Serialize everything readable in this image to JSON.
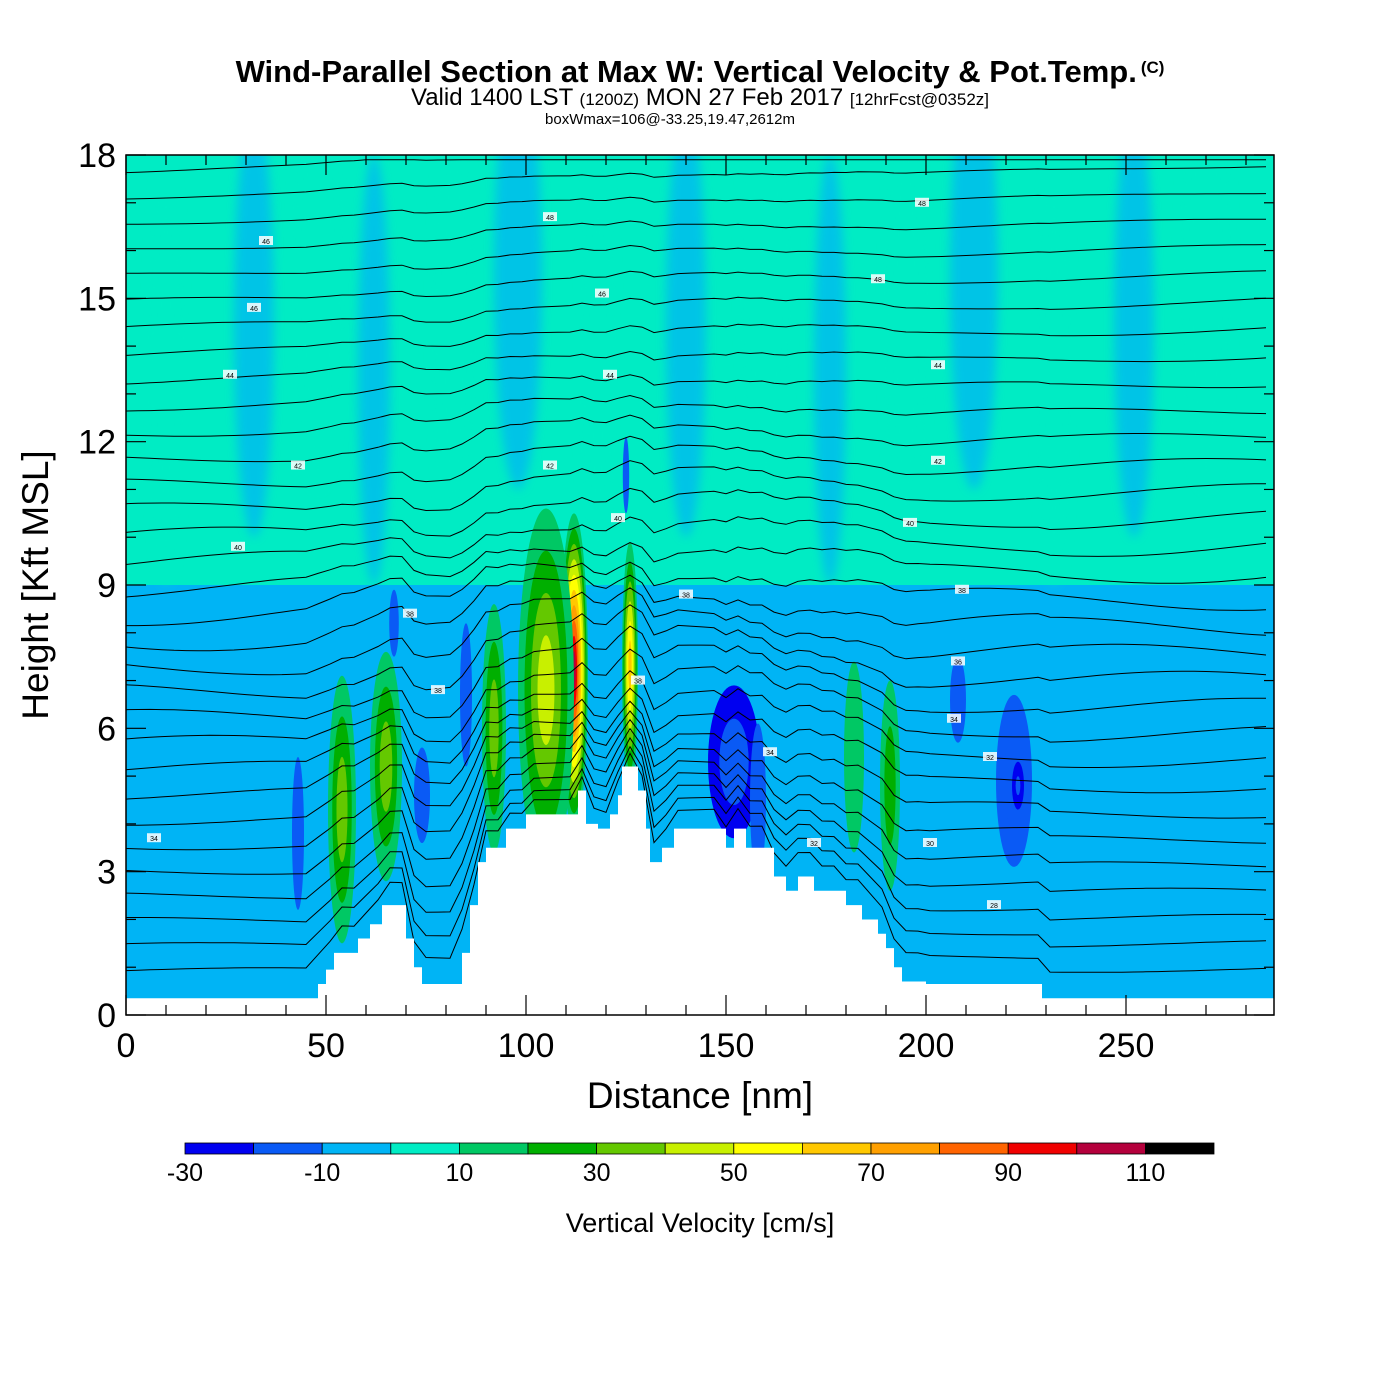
{
  "header": {
    "title": "Wind-Parallel Section at Max W: Vertical Velocity & Pot.Temp.",
    "copyright": "(C)",
    "valid_prefix": "Valid 1400 LST",
    "valid_utc": "(1200Z)",
    "valid_date": "MON 27 Feb 2017",
    "forecast": "[12hrFcst@0352z]",
    "subtitle": "boxWmax=106@-33.25,19.47,2612m"
  },
  "colors": {
    "frame": "#000000",
    "contour": "#000000",
    "terrain": "#ffffff",
    "palette": [
      "#0000f0",
      "#0a5af5",
      "#00b4f5",
      "#00ecc4",
      "#00c864",
      "#00af00",
      "#64c800",
      "#c8f000",
      "#ffff00",
      "#ffc800",
      "#ffa000",
      "#ff6400",
      "#f00000",
      "#b4003c"
    ]
  },
  "chart_data": {
    "type": "heatmap",
    "title": "Wind-Parallel Section at Max W: Vertical Velocity & Pot.Temp.",
    "xlabel": "Distance [nm]",
    "ylabel": "Height [Kft MSL]",
    "xlim": [
      0,
      287
    ],
    "ylim": [
      0,
      18
    ],
    "xticks": [
      0,
      50,
      100,
      150,
      200,
      250
    ],
    "yticks": [
      0,
      3,
      6,
      9,
      12,
      15,
      18
    ],
    "colorbar": {
      "title": "Vertical Velocity [cm/s]",
      "levels": [
        -30,
        -20,
        -10,
        0,
        10,
        20,
        30,
        40,
        50,
        60,
        70,
        80,
        90,
        100,
        110,
        120
      ],
      "labels": [
        "-30",
        "-10",
        "10",
        "30",
        "50",
        "70",
        "90",
        "110"
      ],
      "label_values": [
        -30,
        -10,
        10,
        30,
        50,
        70,
        90,
        110
      ]
    },
    "max_w": {
      "value_cm_s": 106,
      "lat": -33.25,
      "lon": 19.47,
      "height_m": 2612,
      "x_nm": 112
    },
    "terrain_profile": {
      "x_nm": [
        0,
        45,
        48,
        50,
        52,
        55,
        58,
        61,
        64,
        67,
        70,
        72,
        74,
        82,
        84,
        86,
        88,
        90,
        92,
        95,
        98,
        100,
        103,
        108,
        113,
        115,
        118,
        121,
        123,
        124,
        126,
        128,
        130,
        131,
        133,
        134,
        137,
        140,
        145,
        150,
        152,
        155,
        160,
        162,
        165,
        168,
        172,
        176,
        180,
        184,
        188,
        190,
        192,
        194,
        196,
        198,
        200,
        205,
        215,
        228,
        229,
        231,
        287
      ],
      "height_kft": [
        0.35,
        0.35,
        0.65,
        0.95,
        1.3,
        1.3,
        1.6,
        1.9,
        2.3,
        2.3,
        1.6,
        1.0,
        0.65,
        0.65,
        1.3,
        2.3,
        3.2,
        3.5,
        3.5,
        3.9,
        3.9,
        4.2,
        4.2,
        4.2,
        4.7,
        4.0,
        3.9,
        4.2,
        4.6,
        5.2,
        5.2,
        4.7,
        3.9,
        3.2,
        3.2,
        3.5,
        3.9,
        3.9,
        3.9,
        3.5,
        3.9,
        3.5,
        3.5,
        2.9,
        2.6,
        2.9,
        2.6,
        2.6,
        2.3,
        2.0,
        1.7,
        1.4,
        1.0,
        0.7,
        0.7,
        0.7,
        0.65,
        0.65,
        0.65,
        0.65,
        0.35,
        0.35,
        0.35
      ]
    },
    "background_field": [
      {
        "x": [
          0,
          287
        ],
        "y": [
          0,
          9
        ],
        "w": -5
      },
      {
        "x": [
          0,
          287
        ],
        "y": [
          9,
          18
        ],
        "w": 4
      }
    ],
    "updraft_cells": [
      {
        "x": 112,
        "y": 7.2,
        "rx": 3.5,
        "ry": 3.3,
        "w": 106
      },
      {
        "x": 126,
        "y": 7.3,
        "rx": 2.0,
        "ry": 2.6,
        "w": 60
      },
      {
        "x": 105,
        "y": 6.8,
        "rx": 7.0,
        "ry": 3.8,
        "w": 40
      },
      {
        "x": 92,
        "y": 6.0,
        "rx": 3.0,
        "ry": 2.6,
        "w": 35
      },
      {
        "x": 65,
        "y": 5.2,
        "rx": 4.0,
        "ry": 2.4,
        "w": 35
      },
      {
        "x": 54,
        "y": 4.3,
        "rx": 3.5,
        "ry": 2.8,
        "w": 30
      },
      {
        "x": 191,
        "y": 4.8,
        "rx": 2.5,
        "ry": 2.2,
        "w": 28
      },
      {
        "x": 182,
        "y": 5.4,
        "rx": 2.5,
        "ry": 2.0,
        "w": 14
      },
      {
        "x": 170,
        "y": 4.4,
        "rx": 4.0,
        "ry": 2.5,
        "w": 8
      }
    ],
    "downdraft_cells": [
      {
        "x": 152,
        "y": 5.3,
        "rx": 6.5,
        "ry": 1.6,
        "w": -22
      },
      {
        "x": 158,
        "y": 4.5,
        "rx": 2.0,
        "ry": 1.6,
        "w": -18
      },
      {
        "x": 222,
        "y": 4.9,
        "rx": 4.5,
        "ry": 1.8,
        "w": -20
      },
      {
        "x": 223,
        "y": 4.8,
        "rx": 1.5,
        "ry": 0.5,
        "w": -30
      },
      {
        "x": 208,
        "y": 6.6,
        "rx": 2.0,
        "ry": 0.9,
        "w": -18
      },
      {
        "x": 67,
        "y": 8.2,
        "rx": 1.2,
        "ry": 0.7,
        "w": -20
      },
      {
        "x": 74,
        "y": 4.6,
        "rx": 2.0,
        "ry": 1.0,
        "w": -15
      },
      {
        "x": 85,
        "y": 6.7,
        "rx": 1.5,
        "ry": 1.5,
        "w": -15
      },
      {
        "x": 43,
        "y": 3.8,
        "rx": 1.5,
        "ry": 1.6,
        "w": -15
      },
      {
        "x": 125,
        "y": 11.3,
        "rx": 0.8,
        "ry": 0.8,
        "w": -15
      }
    ],
    "isentropes": {
      "units": "deg F",
      "theta_levels": [
        26,
        28,
        30,
        32,
        34,
        36,
        38,
        40,
        42,
        44,
        46,
        48
      ],
      "labels": [
        {
          "text": "34",
          "x": 7,
          "y": 3.7
        },
        {
          "text": "38",
          "x": 78,
          "y": 6.8
        },
        {
          "text": "38",
          "x": 71,
          "y": 8.4
        },
        {
          "text": "40",
          "x": 28,
          "y": 9.8
        },
        {
          "text": "42",
          "x": 43,
          "y": 11.5
        },
        {
          "text": "44",
          "x": 26,
          "y": 13.4
        },
        {
          "text": "46",
          "x": 32,
          "y": 14.8
        },
        {
          "text": "46",
          "x": 35,
          "y": 16.2
        },
        {
          "text": "48",
          "x": 106,
          "y": 16.7
        },
        {
          "text": "46",
          "x": 119,
          "y": 15.1
        },
        {
          "text": "44",
          "x": 121,
          "y": 13.4
        },
        {
          "text": "42",
          "x": 106,
          "y": 11.5
        },
        {
          "text": "40",
          "x": 123,
          "y": 10.4
        },
        {
          "text": "38",
          "x": 140,
          "y": 8.8
        },
        {
          "text": "38",
          "x": 128,
          "y": 7.0
        },
        {
          "text": "34",
          "x": 161,
          "y": 5.5
        },
        {
          "text": "32",
          "x": 172,
          "y": 3.6
        },
        {
          "text": "48",
          "x": 199,
          "y": 17.0
        },
        {
          "text": "48",
          "x": 188,
          "y": 15.4
        },
        {
          "text": "44",
          "x": 203,
          "y": 13.6
        },
        {
          "text": "42",
          "x": 203,
          "y": 11.6
        },
        {
          "text": "40",
          "x": 196,
          "y": 10.3
        },
        {
          "text": "38",
          "x": 209,
          "y": 8.9
        },
        {
          "text": "36",
          "x": 208,
          "y": 7.4
        },
        {
          "text": "34",
          "x": 207,
          "y": 6.2
        },
        {
          "text": "32",
          "x": 216,
          "y": 5.4
        },
        {
          "text": "30",
          "x": 201,
          "y": 3.6
        },
        {
          "text": "28",
          "x": 217,
          "y": 2.3
        }
      ]
    }
  }
}
